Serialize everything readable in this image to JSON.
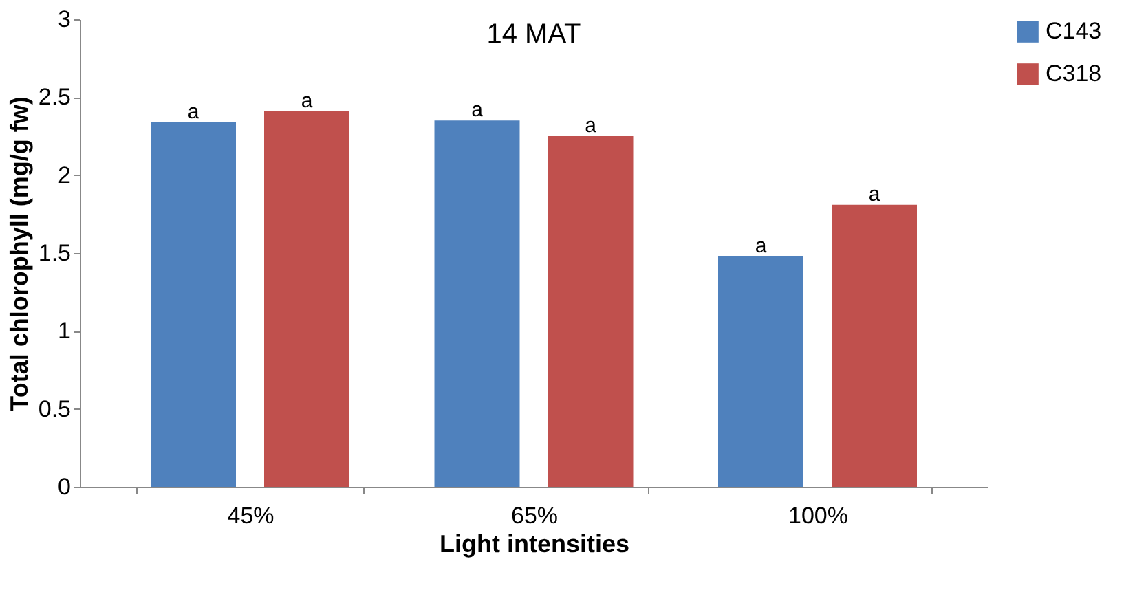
{
  "chart_data": {
    "type": "bar",
    "title": "14 MAT",
    "xlabel": "Light intensities",
    "ylabel": "Total chlorophyll (mg/g fw)",
    "categories": [
      "45%",
      "65%",
      "100%"
    ],
    "series": [
      {
        "name": "C143",
        "color": "#4f81bd",
        "values": [
          2.34,
          2.35,
          1.48
        ],
        "value_labels": [
          "a",
          "a",
          "a"
        ]
      },
      {
        "name": "C318",
        "color": "#c0504d",
        "values": [
          2.41,
          2.25,
          1.81
        ],
        "value_labels": [
          "a",
          "a",
          "a"
        ]
      }
    ],
    "ylim": [
      0,
      3
    ],
    "yticks": [
      0,
      0.5,
      1,
      1.5,
      2,
      2.5,
      3
    ],
    "grid": false,
    "legend": "right"
  }
}
